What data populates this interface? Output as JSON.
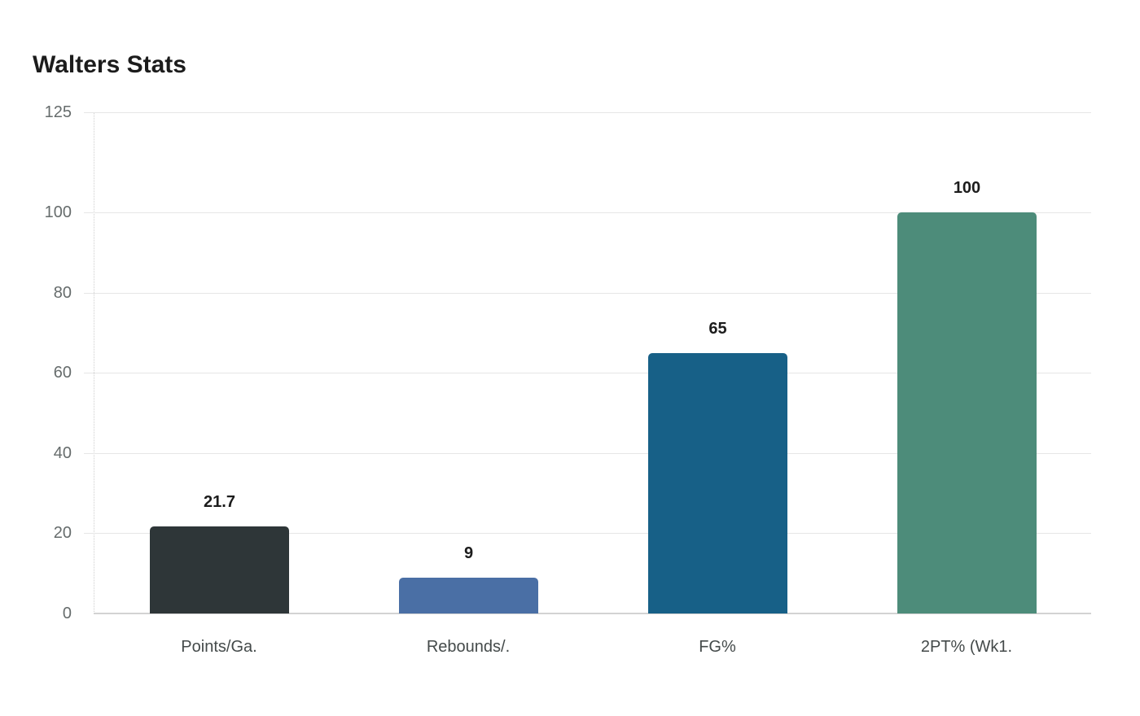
{
  "title": "Walters Stats",
  "chart_data": {
    "type": "bar",
    "title": "Walters Stats",
    "xlabel": "",
    "ylabel": "",
    "ylim": [
      0,
      125
    ],
    "yticks": [
      "0",
      "20",
      "40",
      "60",
      "80",
      "100",
      "125"
    ],
    "grid": true,
    "legend": null,
    "categories": [
      "Points/Ga.",
      "Rebounds/.",
      "FG%",
      "2PT% (Wk1."
    ],
    "values": [
      21.7,
      9,
      65,
      100
    ],
    "value_labels": [
      "21.7",
      "9",
      "65",
      "100"
    ],
    "colors": [
      "#2e3638",
      "#4a6fa5",
      "#176087",
      "#4d8c7a"
    ]
  }
}
